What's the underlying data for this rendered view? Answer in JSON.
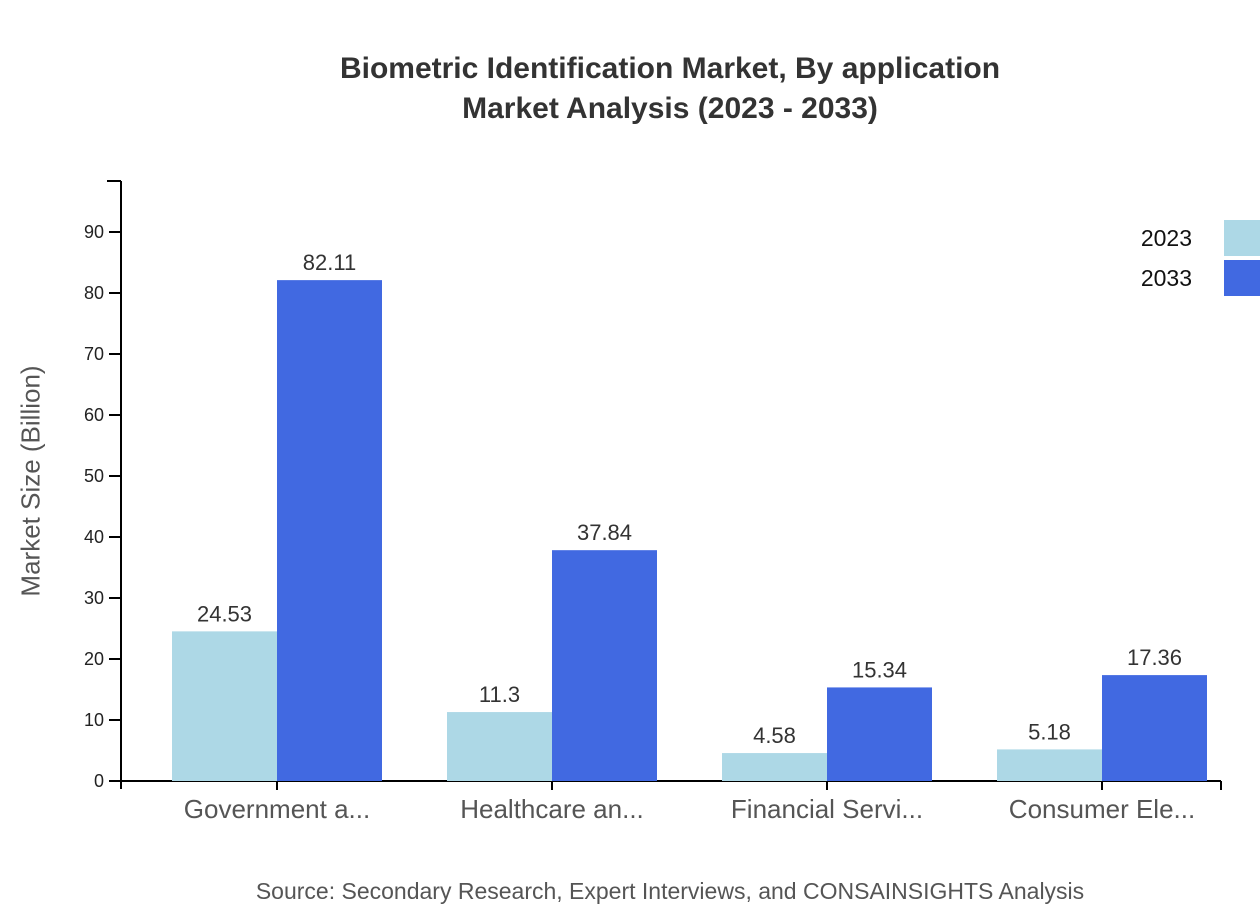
{
  "chart": {
    "title_line1": "Biometric Identification Market, By application",
    "title_line2": "Market Analysis (2023 - 2033)",
    "ylabel": "Market Size (Billion)",
    "source": "Source: Secondary Research, Expert Interviews, and CONSAINSIGHTS Analysis",
    "colors": {
      "2023": "#add8e6",
      "2033": "#4169e1"
    }
  },
  "chart_data": {
    "type": "bar",
    "title": "Biometric Identification Market, By application Market Analysis (2023 - 2033)",
    "xlabel": "",
    "ylabel": "Market Size (Billion)",
    "categories": [
      "Government a...",
      "Healthcare an...",
      "Financial Servi...",
      "Consumer Ele..."
    ],
    "series": [
      {
        "name": "2023",
        "color": "#add8e6",
        "values": [
          24.53,
          11.3,
          4.58,
          5.18
        ]
      },
      {
        "name": "2033",
        "color": "#4169e1",
        "values": [
          82.11,
          37.84,
          15.34,
          17.36
        ]
      }
    ],
    "yticks": [
      0,
      10,
      20,
      30,
      40,
      50,
      60,
      70,
      80,
      90
    ],
    "ylim": [
      0,
      98.4
    ],
    "grid": false,
    "legend_position": "top-right",
    "source": "Source: Secondary Research, Expert Interviews, and CONSAINSIGHTS Analysis"
  }
}
